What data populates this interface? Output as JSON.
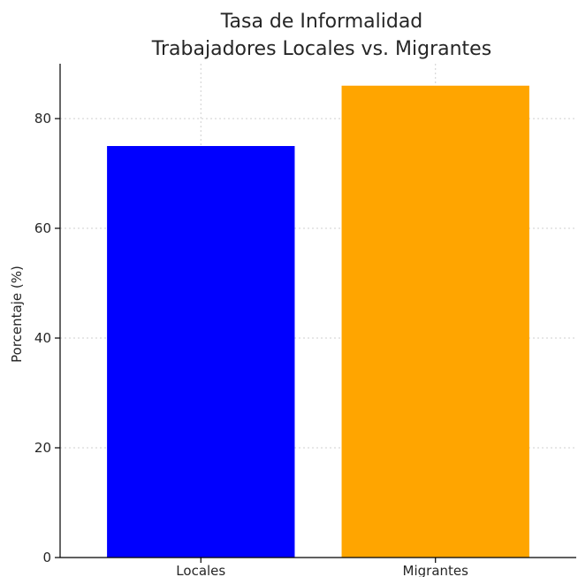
{
  "chart_data": {
    "type": "bar",
    "title_lines": [
      "Tasa de Informalidad",
      "Trabajadores Locales vs. Migrantes"
    ],
    "xlabel": "",
    "ylabel": "Porcentaje (%)",
    "categories": [
      "Locales",
      "Migrantes"
    ],
    "values": [
      75,
      86
    ],
    "colors": [
      "#0000ff",
      "#ffa500"
    ],
    "yticks": [
      "0",
      "20",
      "40",
      "60",
      "80"
    ],
    "ylim": [
      0,
      90
    ],
    "grid": true,
    "legend": "none"
  }
}
